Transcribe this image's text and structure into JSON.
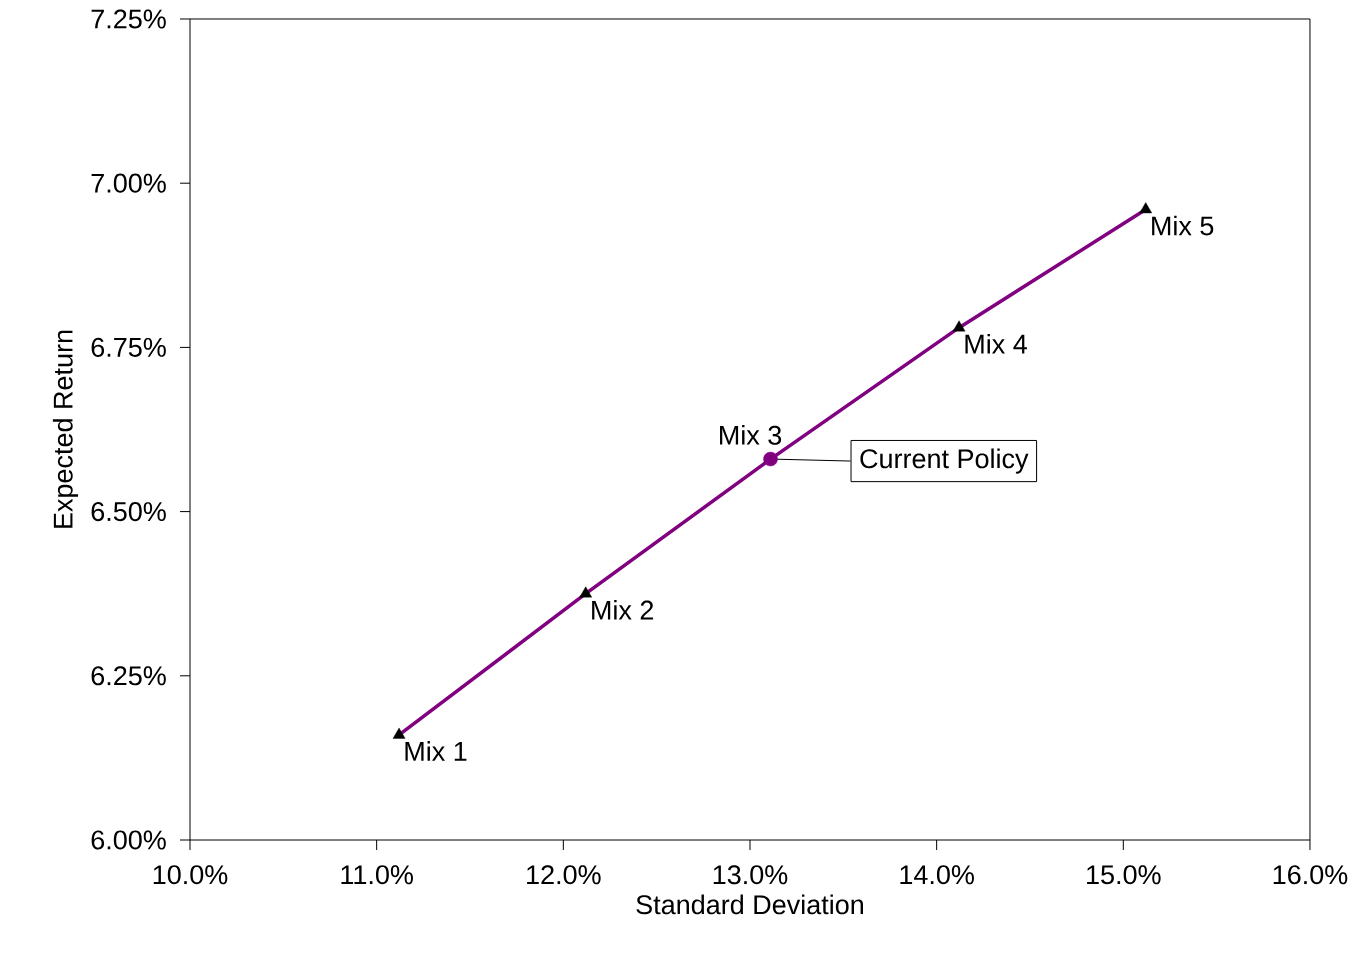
{
  "chart_data": {
    "type": "line",
    "xlabel": "Standard Deviation",
    "ylabel": "Expected Return",
    "xlim": [
      10,
      16
    ],
    "ylim": [
      6,
      7.25
    ],
    "xticks": [
      {
        "value": 10,
        "label": "10.0%"
      },
      {
        "value": 11,
        "label": "11.0%"
      },
      {
        "value": 12,
        "label": "12.0%"
      },
      {
        "value": 13,
        "label": "13.0%"
      },
      {
        "value": 14,
        "label": "14.0%"
      },
      {
        "value": 15,
        "label": "15.0%"
      },
      {
        "value": 16,
        "label": "16.0%"
      }
    ],
    "yticks": [
      {
        "value": 6,
        "label": "6.00%"
      },
      {
        "value": 6.25,
        "label": "6.25%"
      },
      {
        "value": 6.5,
        "label": "6.50%"
      },
      {
        "value": 6.75,
        "label": "6.75%"
      },
      {
        "value": 7,
        "label": "7.00%"
      },
      {
        "value": 7.25,
        "label": "7.25%"
      }
    ],
    "series": [
      {
        "color": "#800080",
        "marker": "none",
        "line_style": "solid",
        "x": [
          11.12,
          12.12,
          13.11,
          14.12,
          15.12
        ],
        "values": [
          6.16,
          6.375,
          6.58,
          6.78,
          6.96
        ]
      },
      {
        "type": "scatter",
        "color": "#000000",
        "marker": "triangle",
        "x": [
          11.12,
          12.12,
          14.12,
          15.12
        ],
        "values": [
          6.16,
          6.375,
          6.78,
          6.96
        ]
      },
      {
        "type": "scatter",
        "color": "#800080",
        "marker": "circle",
        "x": [
          13.11
        ],
        "values": [
          6.58
        ]
      }
    ],
    "annotations": [
      {
        "text": "Mix 1",
        "x": 11.12,
        "y": 6.16
      },
      {
        "text": "Mix 2",
        "x": 12.12,
        "y": 6.375
      },
      {
        "text": "Mix 3",
        "x": 13.11,
        "y": 6.58
      },
      {
        "text": "Mix 4",
        "x": 14.12,
        "y": 6.78
      },
      {
        "text": "Mix 5",
        "x": 15.12,
        "y": 6.96
      },
      "Current Policy"
    ]
  }
}
